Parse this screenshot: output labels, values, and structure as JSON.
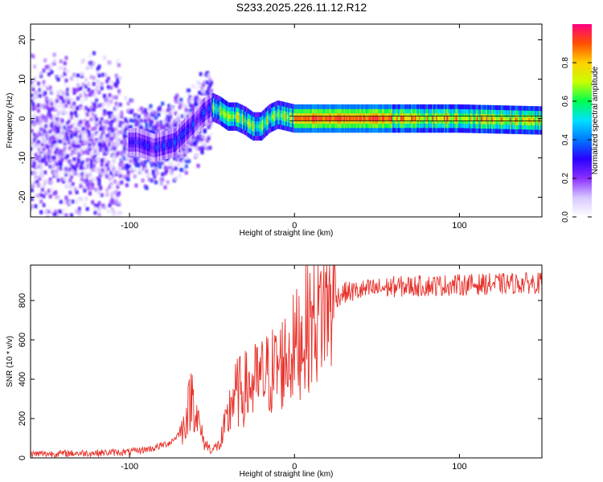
{
  "figure": {
    "title": "S233.2025.226.11.12.R12"
  },
  "chart_data": [
    {
      "type": "heatmap",
      "title": "S233.2025.226.11.12.R12",
      "xlabel": "Height of straight line (km)",
      "ylabel": "Frequency (Hz)",
      "xlim": [
        -160,
        150
      ],
      "ylim": [
        -25,
        24
      ],
      "x_ticks": [
        -100,
        0,
        100
      ],
      "y_ticks": [
        -20,
        -10,
        0,
        10,
        20
      ],
      "grid": false,
      "ridge": {
        "x": [
          -95,
          -85,
          -80,
          -72,
          -65,
          -60,
          -55,
          -50,
          -45,
          -40,
          -35,
          -30,
          -25,
          -20,
          -15,
          -10,
          -5,
          0,
          10,
          30,
          60,
          100,
          150
        ],
        "y": [
          -6,
          -7.5,
          -7,
          -6,
          -3,
          -1,
          1.5,
          3,
          2,
          0.5,
          0.5,
          -0.5,
          -2,
          -2,
          0,
          1,
          0.5,
          0,
          0,
          0,
          0,
          0,
          -0.5
        ]
      },
      "colorbar": {
        "label": "Normalized spectral amplitude",
        "range": [
          0,
          1
        ],
        "ticks": [
          0.0,
          0.2,
          0.4,
          0.6,
          0.8
        ],
        "colors": [
          "#ffffff",
          "#d8c8ff",
          "#8a30ff",
          "#2a00ff",
          "#0078ff",
          "#00e0ff",
          "#00ff50",
          "#c8ff00",
          "#ffd000",
          "#ff5000",
          "#ff0080"
        ]
      }
    },
    {
      "type": "line",
      "xlabel": "Height of straight line (km)",
      "ylabel": "SNR (10 * v/v)",
      "xlim": [
        -160,
        150
      ],
      "ylim": [
        0,
        980
      ],
      "x_ticks": [
        -100,
        0,
        100
      ],
      "y_ticks": [
        0,
        200,
        400,
        600,
        800
      ],
      "grid": false,
      "color": "#e8312a",
      "profile": {
        "x": [
          -160,
          -120,
          -100,
          -85,
          -75,
          -68,
          -64,
          -62,
          -60,
          -58,
          -55,
          -50,
          -45,
          -40,
          -38,
          -30,
          -20,
          -10,
          0,
          10,
          20,
          30,
          40,
          60,
          100,
          150
        ],
        "y": [
          20,
          25,
          30,
          50,
          80,
          140,
          260,
          330,
          250,
          170,
          80,
          40,
          70,
          200,
          310,
          350,
          400,
          460,
          560,
          690,
          790,
          840,
          850,
          870,
          880,
          890
        ]
      }
    }
  ]
}
